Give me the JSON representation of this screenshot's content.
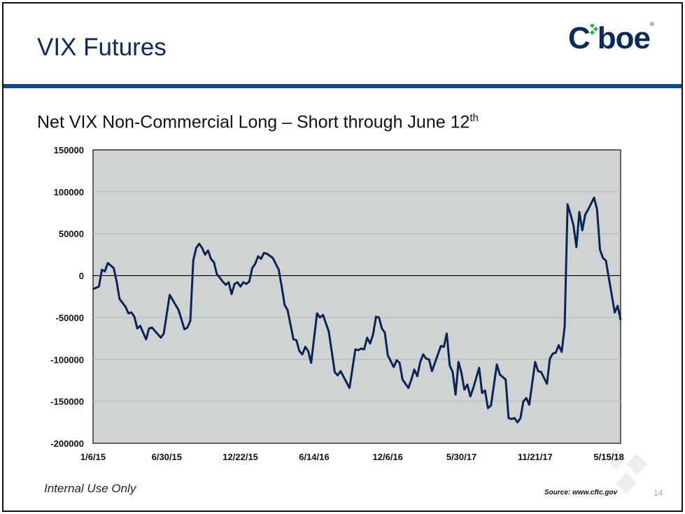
{
  "slide": {
    "title": "VIX Futures",
    "logo_text": "Cboe",
    "subtitle": "Net VIX Non-Commercial Long – Short through June 12",
    "subtitle_suffix": "th",
    "footer": "Internal Use Only",
    "source": "Source:  www.cftc.gov",
    "page_number": "14",
    "colors": {
      "title": "#0c2a5b",
      "accent_bar": "#0a4a8c",
      "line": "#0c2454",
      "plot_bg": "#d0d3d4",
      "logo_green": "#2bb24c"
    }
  },
  "chart_data": {
    "type": "line",
    "title": "",
    "xlabel": "",
    "ylabel": "",
    "ylim": [
      -200000,
      150000
    ],
    "xlim": [
      "2015-01-06",
      "2018-06-12"
    ],
    "yticks": [
      150000,
      100000,
      50000,
      0,
      -50000,
      -100000,
      -150000,
      -200000
    ],
    "ytick_labels": [
      "150000",
      "100000",
      "50000",
      "0",
      "-50000",
      "-100000",
      "-150000",
      "-200000"
    ],
    "xticks": [
      "2015-01-06",
      "2015-06-30",
      "2015-12-22",
      "2016-06-14",
      "2016-12-06",
      "2017-05-30",
      "2017-11-21",
      "2018-05-15"
    ],
    "xtick_labels": [
      "1/6/15",
      "6/30/15",
      "12/22/15",
      "6/14/16",
      "12/6/16",
      "5/30/17",
      "11/21/17",
      "5/15/18"
    ],
    "grid": "horizontal",
    "zero_line": true,
    "series": [
      {
        "points": [
          [
            "2015-01-06",
            -16000
          ],
          [
            "2015-01-20",
            -13000
          ],
          [
            "2015-01-27",
            7000
          ],
          [
            "2015-02-03",
            5000
          ],
          [
            "2015-02-10",
            15000
          ],
          [
            "2015-02-24",
            9000
          ],
          [
            "2015-03-03",
            -7000
          ],
          [
            "2015-03-10",
            -28000
          ],
          [
            "2015-03-24",
            -37000
          ],
          [
            "2015-03-31",
            -45000
          ],
          [
            "2015-04-07",
            -44000
          ],
          [
            "2015-04-14",
            -49000
          ],
          [
            "2015-04-21",
            -63000
          ],
          [
            "2015-04-28",
            -60000
          ],
          [
            "2015-05-12",
            -76000
          ],
          [
            "2015-05-19",
            -63000
          ],
          [
            "2015-05-26",
            -62000
          ],
          [
            "2015-06-16",
            -74000
          ],
          [
            "2015-06-23",
            -69000
          ],
          [
            "2015-07-07",
            -23000
          ],
          [
            "2015-07-28",
            -41000
          ],
          [
            "2015-08-11",
            -64000
          ],
          [
            "2015-08-18",
            -62000
          ],
          [
            "2015-08-25",
            -54000
          ],
          [
            "2015-09-01",
            18000
          ],
          [
            "2015-09-08",
            33000
          ],
          [
            "2015-09-15",
            38000
          ],
          [
            "2015-09-22",
            33000
          ],
          [
            "2015-09-29",
            25000
          ],
          [
            "2015-10-06",
            30000
          ],
          [
            "2015-10-13",
            20000
          ],
          [
            "2015-10-20",
            16000
          ],
          [
            "2015-10-27",
            2000
          ],
          [
            "2015-11-10",
            -7000
          ],
          [
            "2015-11-17",
            -11000
          ],
          [
            "2015-11-24",
            -8000
          ],
          [
            "2015-12-01",
            -22000
          ],
          [
            "2015-12-08",
            -10000
          ],
          [
            "2015-12-15",
            -8000
          ],
          [
            "2015-12-22",
            -13000
          ],
          [
            "2015-12-29",
            -8000
          ],
          [
            "2016-01-05",
            -10000
          ],
          [
            "2016-01-12",
            -7000
          ],
          [
            "2016-01-19",
            9000
          ],
          [
            "2016-01-26",
            14000
          ],
          [
            "2016-02-02",
            23000
          ],
          [
            "2016-02-09",
            20000
          ],
          [
            "2016-02-16",
            27000
          ],
          [
            "2016-02-23",
            26000
          ],
          [
            "2016-03-08",
            21000
          ],
          [
            "2016-03-22",
            7000
          ],
          [
            "2016-03-29",
            -13000
          ],
          [
            "2016-04-05",
            -35000
          ],
          [
            "2016-04-12",
            -41000
          ],
          [
            "2016-04-26",
            -76000
          ],
          [
            "2016-05-03",
            -77000
          ],
          [
            "2016-05-10",
            -90000
          ],
          [
            "2016-05-17",
            -94000
          ],
          [
            "2016-05-24",
            -85000
          ],
          [
            "2016-05-31",
            -90000
          ],
          [
            "2016-06-07",
            -104000
          ],
          [
            "2016-06-21",
            -45000
          ],
          [
            "2016-06-28",
            -50000
          ],
          [
            "2016-07-05",
            -47000
          ],
          [
            "2016-07-19",
            -67000
          ],
          [
            "2016-08-02",
            -115000
          ],
          [
            "2016-08-09",
            -119000
          ],
          [
            "2016-08-16",
            -114000
          ],
          [
            "2016-09-06",
            -134000
          ],
          [
            "2016-09-20",
            -88000
          ],
          [
            "2016-09-27",
            -89000
          ],
          [
            "2016-10-04",
            -87000
          ],
          [
            "2016-10-11",
            -88000
          ],
          [
            "2016-10-18",
            -74000
          ],
          [
            "2016-10-25",
            -81000
          ],
          [
            "2016-11-01",
            -70000
          ],
          [
            "2016-11-08",
            -49000
          ],
          [
            "2016-11-15",
            -50000
          ],
          [
            "2016-11-22",
            -63000
          ],
          [
            "2016-11-29",
            -68000
          ],
          [
            "2016-12-06",
            -95000
          ],
          [
            "2016-12-20",
            -109000
          ],
          [
            "2016-12-27",
            -101000
          ],
          [
            "2017-01-03",
            -104000
          ],
          [
            "2017-01-10",
            -124000
          ],
          [
            "2017-01-24",
            -134000
          ],
          [
            "2017-01-31",
            -124000
          ],
          [
            "2017-02-07",
            -112000
          ],
          [
            "2017-02-14",
            -120000
          ],
          [
            "2017-02-21",
            -103000
          ],
          [
            "2017-02-28",
            -94000
          ],
          [
            "2017-03-07",
            -99000
          ],
          [
            "2017-03-14",
            -100000
          ],
          [
            "2017-03-21",
            -114000
          ],
          [
            "2017-04-04",
            -94000
          ],
          [
            "2017-04-11",
            -84000
          ],
          [
            "2017-04-18",
            -85000
          ],
          [
            "2017-04-25",
            -69000
          ],
          [
            "2017-05-02",
            -107000
          ],
          [
            "2017-05-09",
            -115000
          ],
          [
            "2017-05-16",
            -142000
          ],
          [
            "2017-05-23",
            -103000
          ],
          [
            "2017-05-30",
            -116000
          ],
          [
            "2017-06-06",
            -136000
          ],
          [
            "2017-06-13",
            -130000
          ],
          [
            "2017-06-20",
            -144000
          ],
          [
            "2017-06-27",
            -134000
          ],
          [
            "2017-07-11",
            -110000
          ],
          [
            "2017-07-18",
            -140000
          ],
          [
            "2017-07-25",
            -137000
          ],
          [
            "2017-08-01",
            -158000
          ],
          [
            "2017-08-08",
            -155000
          ],
          [
            "2017-08-22",
            -106000
          ],
          [
            "2017-08-29",
            -118000
          ],
          [
            "2017-09-12",
            -124000
          ],
          [
            "2017-09-19",
            -170000
          ],
          [
            "2017-09-26",
            -171000
          ],
          [
            "2017-10-03",
            -170000
          ],
          [
            "2017-10-10",
            -175000
          ],
          [
            "2017-10-17",
            -170000
          ],
          [
            "2017-10-24",
            -150000
          ],
          [
            "2017-10-31",
            -146000
          ],
          [
            "2017-11-07",
            -154000
          ],
          [
            "2017-11-21",
            -103000
          ],
          [
            "2017-11-28",
            -114000
          ],
          [
            "2017-12-05",
            -115000
          ],
          [
            "2017-12-19",
            -129000
          ],
          [
            "2017-12-26",
            -99000
          ],
          [
            "2018-01-02",
            -93000
          ],
          [
            "2018-01-09",
            -92000
          ],
          [
            "2018-01-16",
            -83000
          ],
          [
            "2018-01-23",
            -91000
          ],
          [
            "2018-01-30",
            -61000
          ],
          [
            "2018-02-06",
            85000
          ],
          [
            "2018-02-13",
            73000
          ],
          [
            "2018-02-20",
            60000
          ],
          [
            "2018-02-27",
            34000
          ],
          [
            "2018-03-06",
            76000
          ],
          [
            "2018-03-13",
            54000
          ],
          [
            "2018-03-20",
            73000
          ],
          [
            "2018-03-27",
            79000
          ],
          [
            "2018-04-10",
            93000
          ],
          [
            "2018-04-17",
            79000
          ],
          [
            "2018-04-24",
            31000
          ],
          [
            "2018-05-01",
            21000
          ],
          [
            "2018-05-08",
            18000
          ],
          [
            "2018-05-29",
            -44000
          ],
          [
            "2018-06-05",
            -36000
          ],
          [
            "2018-06-12",
            -53000
          ]
        ]
      }
    ]
  }
}
